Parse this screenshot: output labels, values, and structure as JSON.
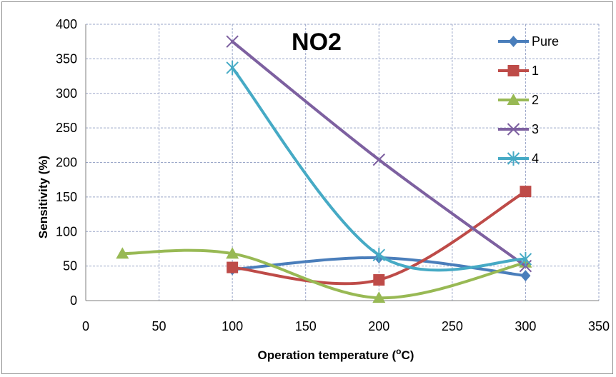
{
  "chart_data": {
    "type": "scatter",
    "title": "NO2",
    "xlabel": "Operation temperature (",
    "xlabel_sup": "o",
    "xlabel_unit": "C)",
    "ylabel": "Sensitivity (%)",
    "xlim": [
      0,
      350
    ],
    "ylim": [
      0,
      400
    ],
    "xticks": [
      "0",
      "50",
      "100",
      "150",
      "200",
      "250",
      "300",
      "350"
    ],
    "yticks": [
      "0",
      "50",
      "100",
      "150",
      "200",
      "250",
      "300",
      "350",
      "400"
    ],
    "xtick_values": [
      0,
      50,
      100,
      150,
      200,
      250,
      300,
      350
    ],
    "ytick_values": [
      0,
      50,
      100,
      150,
      200,
      250,
      300,
      350,
      400
    ],
    "grid": true,
    "smooth": true,
    "legend_position": "top-right",
    "series": [
      {
        "name": "Pure",
        "color": "#4a7ebb",
        "marker": "diamond",
        "x": [
          100,
          200,
          300
        ],
        "y": [
          45,
          62,
          36
        ]
      },
      {
        "name": "1",
        "color": "#be4b48",
        "marker": "square",
        "x": [
          100,
          200,
          300
        ],
        "y": [
          48,
          30,
          158
        ]
      },
      {
        "name": "2",
        "color": "#98b954",
        "marker": "triangle",
        "x": [
          25,
          100,
          200,
          300
        ],
        "y": [
          68,
          68,
          4,
          55
        ]
      },
      {
        "name": "3",
        "color": "#7d60a0",
        "marker": "x",
        "x": [
          100,
          200,
          300
        ],
        "y": [
          375,
          204,
          50
        ]
      },
      {
        "name": "4",
        "color": "#46aac5",
        "marker": "star",
        "x": [
          100,
          200,
          300
        ],
        "y": [
          337,
          66,
          60
        ]
      }
    ]
  }
}
